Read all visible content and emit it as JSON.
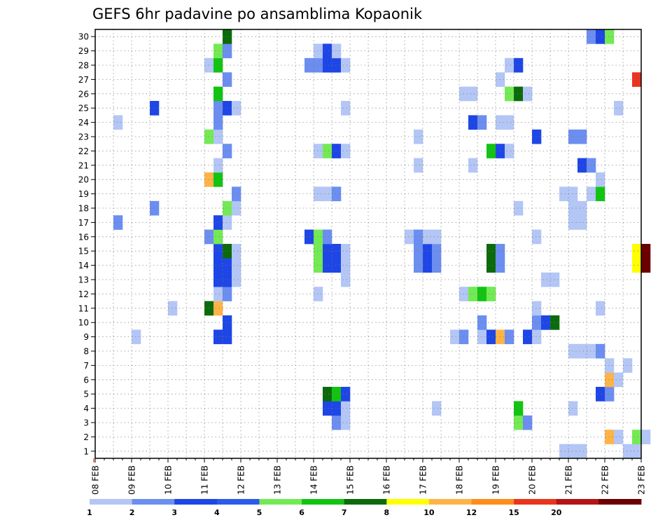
{
  "chart_data": {
    "type": "heatmap",
    "title": "GEFS 6hr padavine po ansamblima Kopaonik",
    "x_tick_labels": [
      "08 FEB",
      "09 FEB",
      "10 FEB",
      "11 FEB",
      "12 FEB",
      "13 FEB",
      "14 FEB",
      "15 FEB",
      "16 FEB",
      "17 FEB",
      "18 FEB",
      "19 FEB",
      "20 FEB",
      "21 FEB",
      "22 FEB",
      "23 FEB"
    ],
    "y_tick_labels": [
      "1",
      "2",
      "3",
      "4",
      "5",
      "6",
      "7",
      "8",
      "9",
      "10",
      "11",
      "12",
      "13",
      "14",
      "15",
      "16",
      "17",
      "18",
      "19",
      "20",
      "21",
      "22",
      "23",
      "24",
      "25",
      "26",
      "27",
      "28",
      "29",
      "30"
    ],
    "xlim_days": [
      0,
      15
    ],
    "ylim_members": [
      0.5,
      30.5
    ],
    "steps_per_day": 4,
    "grid": "dotted",
    "legend": {
      "placement": "bottom",
      "labels": [
        "1",
        "2",
        "3",
        "4",
        "5",
        "6",
        "7",
        "8",
        "10",
        "12",
        "15",
        "20"
      ],
      "colors": [
        "#b3c6f5",
        "#6b8ef0",
        "#1e46e6",
        "#2e5ae8",
        "#73ea54",
        "#12c412",
        "#0b6b0b",
        "#ffff00",
        "#ffb347",
        "#ff8c1a",
        "#e8351e",
        "#b41414",
        "#6b0000"
      ]
    },
    "cells": [
      [
        1,
        12.75,
        "#b3c6f5"
      ],
      [
        1,
        13,
        "#b3c6f5"
      ],
      [
        1,
        13.25,
        "#b3c6f5"
      ],
      [
        1,
        14.5,
        "#b3c6f5"
      ],
      [
        1,
        14.75,
        "#b3c6f5"
      ],
      [
        2,
        14,
        "#ffb347"
      ],
      [
        2,
        14.25,
        "#b3c6f5"
      ],
      [
        2,
        14.75,
        "#73ea54"
      ],
      [
        2,
        15,
        "#b3c6f5"
      ],
      [
        3,
        6.5,
        "#6b8ef0"
      ],
      [
        3,
        6.75,
        "#b3c6f5"
      ],
      [
        3,
        11.5,
        "#73ea54"
      ],
      [
        3,
        11.75,
        "#6b8ef0"
      ],
      [
        4,
        13,
        "#b3c6f5"
      ],
      [
        4,
        6.25,
        "#1e46e6"
      ],
      [
        4,
        6.5,
        "#1e46e6"
      ],
      [
        4,
        6.75,
        "#b3c6f5"
      ],
      [
        4,
        9.25,
        "#b3c6f5"
      ],
      [
        4,
        11.5,
        "#12c412"
      ],
      [
        5,
        14,
        "#b3c6f5"
      ],
      [
        5,
        6.25,
        "#0b6b0b"
      ],
      [
        5,
        6.5,
        "#12c412"
      ],
      [
        5,
        6.75,
        "#1e46e6"
      ],
      [
        5,
        13.75,
        "#1e46e6"
      ],
      [
        5,
        14,
        "#6b8ef0"
      ],
      [
        6,
        14,
        "#ffb347"
      ],
      [
        6,
        14.25,
        "#b3c6f5"
      ],
      [
        7,
        14,
        "#b3c6f5"
      ],
      [
        7,
        14.5,
        "#b3c6f5"
      ],
      [
        8,
        13,
        "#b3c6f5"
      ],
      [
        8,
        13.25,
        "#b3c6f5"
      ],
      [
        8,
        13.5,
        "#b3c6f5"
      ],
      [
        8,
        13.75,
        "#6b8ef0"
      ],
      [
        9,
        1,
        "#b3c6f5"
      ],
      [
        9,
        3.25,
        "#1e46e6"
      ],
      [
        9,
        3.5,
        "#1e46e6"
      ],
      [
        9,
        9.75,
        "#b3c6f5"
      ],
      [
        9,
        10,
        "#6b8ef0"
      ],
      [
        9,
        10.5,
        "#b3c6f5"
      ],
      [
        9,
        10.75,
        "#1e46e6"
      ],
      [
        9,
        11,
        "#ffb347"
      ],
      [
        9,
        11.25,
        "#6b8ef0"
      ],
      [
        9,
        11.75,
        "#1e46e6"
      ],
      [
        9,
        12,
        "#b3c6f5"
      ],
      [
        10,
        3.5,
        "#1e46e6"
      ],
      [
        10,
        10.5,
        "#6b8ef0"
      ],
      [
        10,
        12,
        "#6b8ef0"
      ],
      [
        10,
        12.25,
        "#1e46e6"
      ],
      [
        10,
        12.5,
        "#0b6b0b"
      ],
      [
        11,
        2,
        "#b3c6f5"
      ],
      [
        11,
        3,
        "#0b6b0b"
      ],
      [
        11,
        3.25,
        "#ffb347"
      ],
      [
        11,
        12,
        "#b3c6f5"
      ],
      [
        11,
        13.75,
        "#b3c6f5"
      ],
      [
        12,
        3.25,
        "#b3c6f5"
      ],
      [
        12,
        3.5,
        "#6b8ef0"
      ],
      [
        12,
        6,
        "#b3c6f5"
      ],
      [
        12,
        10,
        "#b3c6f5"
      ],
      [
        12,
        10.25,
        "#73ea54"
      ],
      [
        12,
        10.5,
        "#12c412"
      ],
      [
        12,
        10.75,
        "#73ea54"
      ],
      [
        13,
        3.25,
        "#1e46e6"
      ],
      [
        13,
        3.5,
        "#1e46e6"
      ],
      [
        13,
        3.75,
        "#b3c6f5"
      ],
      [
        13,
        6.75,
        "#b3c6f5"
      ],
      [
        13,
        12.25,
        "#b3c6f5"
      ],
      [
        13,
        12.5,
        "#b3c6f5"
      ],
      [
        14,
        3.25,
        "#1e46e6"
      ],
      [
        14,
        3.5,
        "#1e46e6"
      ],
      [
        14,
        3.75,
        "#b3c6f5"
      ],
      [
        14,
        6,
        "#73ea54"
      ],
      [
        14,
        6.25,
        "#1e46e6"
      ],
      [
        14,
        6.5,
        "#1e46e6"
      ],
      [
        14,
        6.75,
        "#b3c6f5"
      ],
      [
        14,
        8.75,
        "#6b8ef0"
      ],
      [
        14,
        9,
        "#1e46e6"
      ],
      [
        14,
        9.25,
        "#6b8ef0"
      ],
      [
        14,
        10.75,
        "#0b6b0b"
      ],
      [
        14,
        11,
        "#6b8ef0"
      ],
      [
        14,
        14.75,
        "#ffff00"
      ],
      [
        14,
        15,
        "#6b0000"
      ],
      [
        15,
        3.25,
        "#1e46e6"
      ],
      [
        15,
        3.5,
        "#0b6b0b"
      ],
      [
        15,
        3.75,
        "#b3c6f5"
      ],
      [
        15,
        6,
        "#73ea54"
      ],
      [
        15,
        6.25,
        "#1e46e6"
      ],
      [
        15,
        6.5,
        "#1e46e6"
      ],
      [
        15,
        6.75,
        "#b3c6f5"
      ],
      [
        15,
        8.75,
        "#6b8ef0"
      ],
      [
        15,
        9,
        "#1e46e6"
      ],
      [
        15,
        9.25,
        "#6b8ef0"
      ],
      [
        15,
        10.75,
        "#0b6b0b"
      ],
      [
        15,
        11,
        "#6b8ef0"
      ],
      [
        15,
        14.75,
        "#ffff00"
      ],
      [
        15,
        15,
        "#6b0000"
      ],
      [
        16,
        3,
        "#6b8ef0"
      ],
      [
        16,
        3.25,
        "#73ea54"
      ],
      [
        16,
        5.75,
        "#1e46e6"
      ],
      [
        16,
        6,
        "#73ea54"
      ],
      [
        16,
        6.25,
        "#6b8ef0"
      ],
      [
        16,
        8.5,
        "#b3c6f5"
      ],
      [
        16,
        8.75,
        "#6b8ef0"
      ],
      [
        16,
        9,
        "#b3c6f5"
      ],
      [
        16,
        9.25,
        "#b3c6f5"
      ],
      [
        16,
        12,
        "#b3c6f5"
      ],
      [
        17,
        0.5,
        "#6b8ef0"
      ],
      [
        17,
        3.25,
        "#1e46e6"
      ],
      [
        17,
        3.5,
        "#b3c6f5"
      ],
      [
        17,
        13,
        "#b3c6f5"
      ],
      [
        17,
        13.25,
        "#b3c6f5"
      ],
      [
        18,
        1.5,
        "#6b8ef0"
      ],
      [
        18,
        3.5,
        "#73ea54"
      ],
      [
        18,
        3.75,
        "#b3c6f5"
      ],
      [
        18,
        11.5,
        "#b3c6f5"
      ],
      [
        18,
        13,
        "#b3c6f5"
      ],
      [
        18,
        13.25,
        "#b3c6f5"
      ],
      [
        19,
        3.75,
        "#6b8ef0"
      ],
      [
        19,
        6,
        "#b3c6f5"
      ],
      [
        19,
        6.25,
        "#b3c6f5"
      ],
      [
        19,
        6.5,
        "#6b8ef0"
      ],
      [
        19,
        12.75,
        "#b3c6f5"
      ],
      [
        19,
        13,
        "#b3c6f5"
      ],
      [
        19,
        13.5,
        "#b3c6f5"
      ],
      [
        19,
        13.75,
        "#12c412"
      ],
      [
        20,
        3,
        "#ffb347"
      ],
      [
        20,
        3.25,
        "#12c412"
      ],
      [
        20,
        13.75,
        "#b3c6f5"
      ],
      [
        21,
        3.25,
        "#b3c6f5"
      ],
      [
        21,
        8.75,
        "#b3c6f5"
      ],
      [
        21,
        10.25,
        "#b3c6f5"
      ],
      [
        21,
        13.25,
        "#1e46e6"
      ],
      [
        21,
        13.5,
        "#6b8ef0"
      ],
      [
        22,
        3.5,
        "#6b8ef0"
      ],
      [
        22,
        6,
        "#b3c6f5"
      ],
      [
        22,
        6.25,
        "#73ea54"
      ],
      [
        22,
        6.5,
        "#1e46e6"
      ],
      [
        22,
        6.75,
        "#b3c6f5"
      ],
      [
        22,
        10.75,
        "#12c412"
      ],
      [
        22,
        11,
        "#1e46e6"
      ],
      [
        22,
        11.25,
        "#b3c6f5"
      ],
      [
        23,
        3,
        "#73ea54"
      ],
      [
        23,
        3.25,
        "#b3c6f5"
      ],
      [
        23,
        8.75,
        "#b3c6f5"
      ],
      [
        23,
        12,
        "#1e46e6"
      ],
      [
        23,
        13,
        "#6b8ef0"
      ],
      [
        23,
        13.25,
        "#6b8ef0"
      ],
      [
        24,
        0.5,
        "#b3c6f5"
      ],
      [
        24,
        3.25,
        "#6b8ef0"
      ],
      [
        24,
        10.25,
        "#1e46e6"
      ],
      [
        24,
        10.5,
        "#6b8ef0"
      ],
      [
        24,
        11,
        "#b3c6f5"
      ],
      [
        24,
        11.25,
        "#b3c6f5"
      ],
      [
        25,
        1.5,
        "#1e46e6"
      ],
      [
        25,
        3.25,
        "#6b8ef0"
      ],
      [
        25,
        3.5,
        "#1e46e6"
      ],
      [
        25,
        3.75,
        "#b3c6f5"
      ],
      [
        25,
        6.75,
        "#b3c6f5"
      ],
      [
        25,
        14.25,
        "#b3c6f5"
      ],
      [
        26,
        3.25,
        "#12c412"
      ],
      [
        26,
        10,
        "#b3c6f5"
      ],
      [
        26,
        10.25,
        "#b3c6f5"
      ],
      [
        26,
        11.25,
        "#73ea54"
      ],
      [
        26,
        11.5,
        "#0b6b0b"
      ],
      [
        26,
        11.75,
        "#b3c6f5"
      ],
      [
        27,
        3.5,
        "#6b8ef0"
      ],
      [
        27,
        11,
        "#b3c6f5"
      ],
      [
        27,
        14.75,
        "#e8351e"
      ],
      [
        28,
        3,
        "#b3c6f5"
      ],
      [
        28,
        3.25,
        "#12c412"
      ],
      [
        28,
        5.75,
        "#6b8ef0"
      ],
      [
        28,
        6,
        "#6b8ef0"
      ],
      [
        28,
        6.25,
        "#1e46e6"
      ],
      [
        28,
        6.5,
        "#1e46e6"
      ],
      [
        28,
        6.75,
        "#b3c6f5"
      ],
      [
        28,
        11.25,
        "#b3c6f5"
      ],
      [
        28,
        11.5,
        "#1e46e6"
      ],
      [
        29,
        3.25,
        "#73ea54"
      ],
      [
        29,
        3.5,
        "#6b8ef0"
      ],
      [
        29,
        6,
        "#b3c6f5"
      ],
      [
        29,
        6.25,
        "#1e46e6"
      ],
      [
        29,
        6.5,
        "#b3c6f5"
      ],
      [
        30,
        3.5,
        "#0b6b0b"
      ],
      [
        30,
        13.5,
        "#6b8ef0"
      ],
      [
        30,
        13.75,
        "#1e46e6"
      ],
      [
        30,
        14,
        "#73ea54"
      ]
    ]
  }
}
